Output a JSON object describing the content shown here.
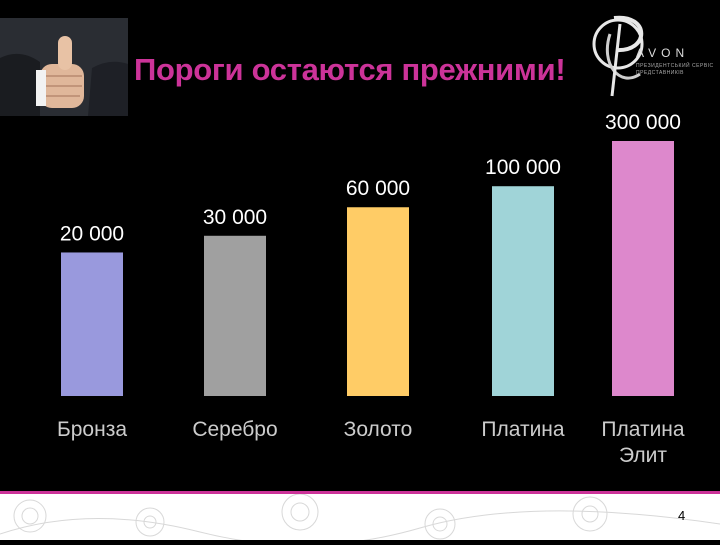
{
  "header": {
    "title": "Пороги остаются прежними!"
  },
  "logo": {
    "brand": "AVON",
    "subtitle": "ПРЕЗИДЕНТСЬКИЙ СЕРВІС ПРЕДСТАВНИКІВ"
  },
  "page_number": "4",
  "chart_data": {
    "type": "bar",
    "categories": [
      "Бронза",
      "Серебро",
      "Золото",
      "Платина",
      "Платина Элит"
    ],
    "values": [
      20000,
      30000,
      60000,
      100000,
      300000
    ],
    "value_labels": [
      "20 000",
      "30 000",
      "60 000",
      "100 000",
      "300 000"
    ],
    "colors": [
      "#9999dd",
      "#a0a0a0",
      "#ffcc66",
      "#a0d4d8",
      "#dd88cc"
    ],
    "label_color": "#ffffff",
    "category_label_color": "#cccccc",
    "title": "",
    "xlabel": "",
    "ylabel": "",
    "grid": false,
    "axes_visible": false
  }
}
